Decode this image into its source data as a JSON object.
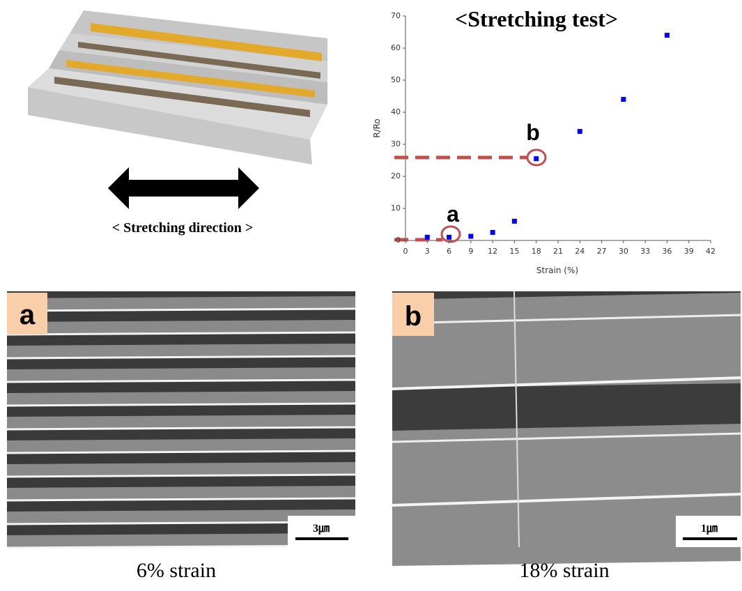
{
  "illustration": {
    "caption": "< Stretching direction >"
  },
  "chart_data": {
    "type": "scatter",
    "title": "<Stretching test>",
    "x_label": "Strain (%)",
    "y_label": "R/Ro",
    "x": [
      3,
      6,
      9,
      12,
      15,
      18,
      24,
      30,
      36
    ],
    "series": [
      {
        "name": "R/Ro",
        "color": "#0000ff",
        "values": [
          1,
          1,
          1.3,
          2.5,
          6,
          25.5,
          34,
          44,
          64
        ]
      }
    ],
    "xlim": [
      0,
      42
    ],
    "xticks": [
      0,
      3,
      6,
      9,
      12,
      15,
      18,
      21,
      24,
      27,
      30,
      33,
      36,
      39,
      42
    ],
    "ylim": [
      0,
      70
    ],
    "yticks": [
      0,
      10,
      20,
      30,
      40,
      50,
      60,
      70
    ],
    "annotations": [
      "a",
      "b"
    ]
  },
  "panels": [
    {
      "label": "a",
      "scale_bar": "3㎛",
      "caption": "6% strain"
    },
    {
      "label": "b",
      "scale_bar": "1㎛",
      "caption": "18% strain"
    }
  ]
}
